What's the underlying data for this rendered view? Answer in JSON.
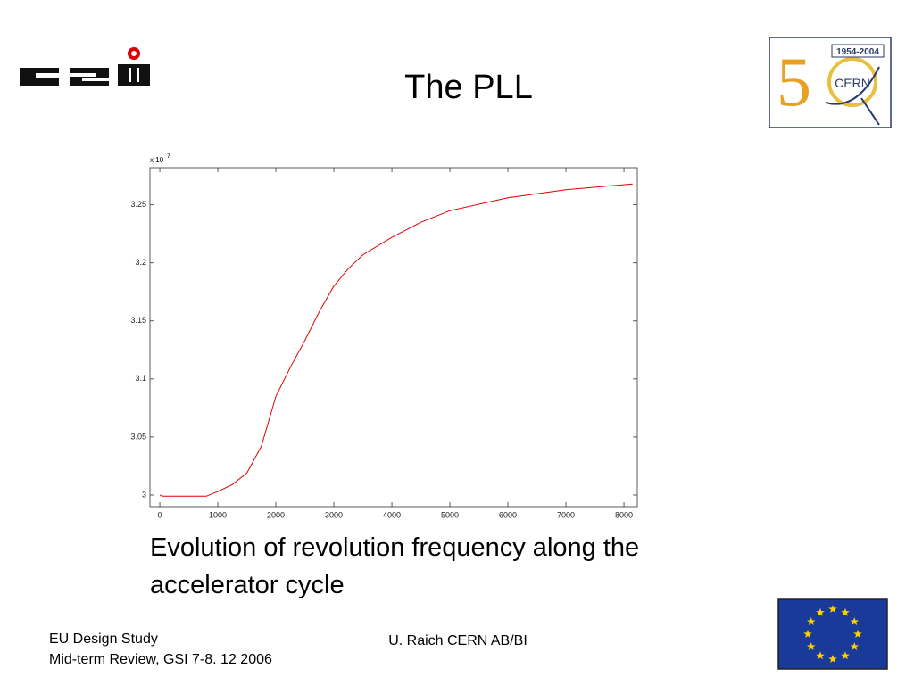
{
  "header": {
    "title": "The PLL",
    "cern_years": "1954-2004",
    "cern_name": "CERN"
  },
  "chart_data": {
    "type": "line",
    "y_multiplier": "x 10",
    "y_exponent": "7",
    "x": [
      0,
      50,
      800,
      1000,
      1250,
      1500,
      1750,
      2000,
      2250,
      2500,
      2750,
      3000,
      3250,
      3500,
      4000,
      4500,
      5000,
      6000,
      7000,
      8150
    ],
    "series": [
      {
        "color": "#e00000",
        "values": [
          3.0,
          2.999,
          2.999,
          3.003,
          3.009,
          3.019,
          3.042,
          3.085,
          3.11,
          3.133,
          3.158,
          3.18,
          3.195,
          3.207,
          3.222,
          3.235,
          3.245,
          3.256,
          3.263,
          3.268
        ]
      }
    ],
    "xlim": [
      -170,
      8230
    ],
    "ylim": [
      2.99,
      3.282
    ],
    "xticks": [
      0,
      1000,
      2000,
      3000,
      4000,
      5000,
      6000,
      7000,
      8000
    ],
    "yticks": [
      3,
      3.05,
      3.1,
      3.15,
      3.2,
      3.25
    ]
  },
  "caption": [
    "Evolution of revolution frequency along the",
    "accelerator cycle"
  ],
  "footer": {
    "left": [
      "EU Design Study",
      "Mid-term Review, GSI 7-8. 12 2006"
    ],
    "center": "U. Raich CERN AB/BI"
  }
}
